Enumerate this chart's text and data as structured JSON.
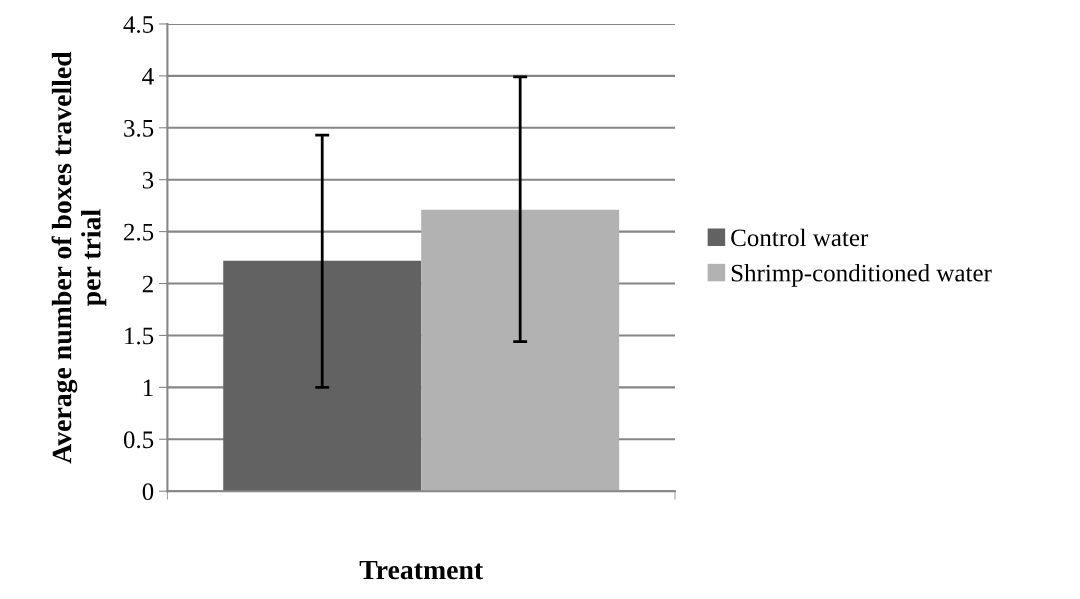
{
  "chart_data": {
    "type": "bar",
    "xlabel": "Treatment",
    "ylabel": "Average number of boxes travelled\nper trial",
    "categories": [
      null
    ],
    "series": [
      {
        "name": "Control water",
        "color": "#626262",
        "values": [
          2.22
        ],
        "errors": [
          [
            1.0,
            3.43
          ]
        ]
      },
      {
        "name": "Shrimp-conditioned water",
        "color": "#b2b2b2",
        "values": [
          2.71
        ],
        "errors": [
          [
            1.44,
            3.99
          ]
        ]
      }
    ],
    "ylim": [
      0,
      4.5
    ],
    "yticks": [
      0,
      0.5,
      1,
      1.5,
      2,
      2.5,
      3,
      3.5,
      4,
      4.5
    ],
    "grid": "y",
    "legend": "right"
  }
}
